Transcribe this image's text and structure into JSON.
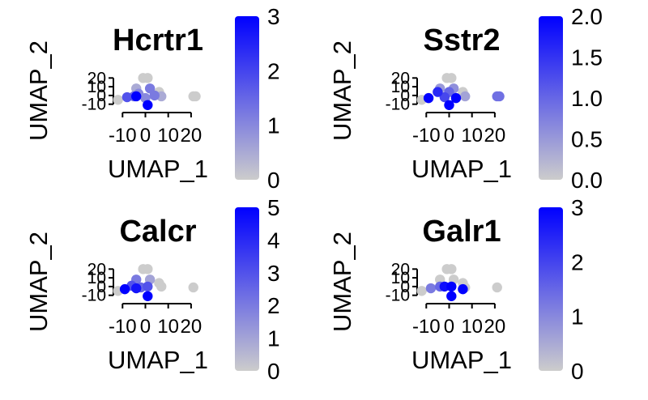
{
  "colors": {
    "low": "#cccccc",
    "high": "#0000ff",
    "axis": "#000000",
    "background": "#ffffff"
  },
  "chart_data": [
    {
      "type": "scatter",
      "title": "Hcrtr1",
      "xlabel": "UMAP_1",
      "ylabel": "UMAP_2",
      "xlim": [
        -14,
        25
      ],
      "ylim": [
        -14,
        24
      ],
      "xticks": [
        -10,
        0,
        10,
        20
      ],
      "xtick_labels": [
        "-10",
        "0",
        "10",
        "20"
      ],
      "yticks": [
        -10,
        0,
        10,
        20
      ],
      "ytick_labels": [
        "-10",
        "0",
        "10",
        "20"
      ],
      "legend": {
        "position": "right",
        "min": 0,
        "max": 3,
        "ticks": [
          0,
          1,
          2,
          3
        ],
        "tick_labels": [
          "0",
          "1",
          "2",
          "3"
        ]
      },
      "points": [
        {
          "x": -1,
          "y": 20,
          "v": 0
        },
        {
          "x": 1,
          "y": 20,
          "v": 0
        },
        {
          "x": -4,
          "y": 8,
          "v": 0.5
        },
        {
          "x": 2,
          "y": 8,
          "v": 1.2
        },
        {
          "x": 6,
          "y": 4,
          "v": 0
        },
        {
          "x": -3,
          "y": 2,
          "v": 1.0
        },
        {
          "x": 4,
          "y": 0,
          "v": 1.2
        },
        {
          "x": 7,
          "y": -1,
          "v": 0.5
        },
        {
          "x": -8,
          "y": -2,
          "v": 1.8
        },
        {
          "x": -5,
          "y": -1,
          "v": 1.4
        },
        {
          "x": 0,
          "y": -3,
          "v": 1.0
        },
        {
          "x": -12,
          "y": -5,
          "v": 0
        },
        {
          "x": 21,
          "y": -1,
          "v": 0
        },
        {
          "x": 22,
          "y": -1,
          "v": 0
        },
        {
          "x": -4,
          "y": -1,
          "v": 3.0
        },
        {
          "x": 1,
          "y": -11,
          "v": 3.0
        }
      ]
    },
    {
      "type": "scatter",
      "title": "Sstr2",
      "xlabel": "UMAP_1",
      "ylabel": "UMAP_2",
      "xlim": [
        -14,
        25
      ],
      "ylim": [
        -14,
        24
      ],
      "xticks": [
        -10,
        0,
        10,
        20
      ],
      "xtick_labels": [
        "-10",
        "0",
        "10",
        "20"
      ],
      "yticks": [
        -10,
        0,
        10,
        20
      ],
      "ytick_labels": [
        "-10",
        "0",
        "10",
        "20"
      ],
      "legend": {
        "position": "right",
        "min": 0,
        "max": 2,
        "ticks": [
          0,
          0.5,
          1,
          1.5,
          2
        ],
        "tick_labels": [
          "0.0",
          "0.5",
          "1.0",
          "1.5",
          "2.0"
        ]
      },
      "points": [
        {
          "x": -1,
          "y": 20,
          "v": 0
        },
        {
          "x": 1,
          "y": 20,
          "v": 0
        },
        {
          "x": 2,
          "y": 8,
          "v": 0.6
        },
        {
          "x": -4,
          "y": 8,
          "v": 0.5
        },
        {
          "x": 6,
          "y": 4,
          "v": 0
        },
        {
          "x": 7,
          "y": -1,
          "v": 0.4
        },
        {
          "x": -12,
          "y": -5,
          "v": 0
        },
        {
          "x": -5,
          "y": 4,
          "v": 1.6
        },
        {
          "x": 0,
          "y": 4,
          "v": 1.0
        },
        {
          "x": -9,
          "y": -3,
          "v": 2.0
        },
        {
          "x": -2,
          "y": -2,
          "v": 1.3
        },
        {
          "x": 3,
          "y": -3,
          "v": 2.0
        },
        {
          "x": 0,
          "y": -11,
          "v": 2.0
        },
        {
          "x": 21,
          "y": -1,
          "v": 0.9
        },
        {
          "x": 22,
          "y": -1,
          "v": 0.9
        }
      ]
    },
    {
      "type": "scatter",
      "title": "Calcr",
      "xlabel": "UMAP_1",
      "ylabel": "UMAP_2",
      "xlim": [
        -14,
        25
      ],
      "ylim": [
        -14,
        24
      ],
      "xticks": [
        -10,
        0,
        10,
        20
      ],
      "xtick_labels": [
        "-10",
        "0",
        "10",
        "20"
      ],
      "yticks": [
        -10,
        0,
        10,
        20
      ],
      "ytick_labels": [
        "-10",
        "0",
        "10",
        "20"
      ],
      "legend": {
        "position": "right",
        "min": 0,
        "max": 5,
        "ticks": [
          0,
          1,
          2,
          3,
          4,
          5
        ],
        "tick_labels": [
          "0",
          "1",
          "2",
          "3",
          "4",
          "5"
        ]
      },
      "points": [
        {
          "x": -1,
          "y": 20,
          "v": 0
        },
        {
          "x": 1,
          "y": 20,
          "v": 0
        },
        {
          "x": -4,
          "y": 8,
          "v": 2.0
        },
        {
          "x": 2,
          "y": 8,
          "v": 1.0
        },
        {
          "x": 6,
          "y": 4,
          "v": 0
        },
        {
          "x": 7,
          "y": 0,
          "v": 0
        },
        {
          "x": -12,
          "y": -5,
          "v": 0
        },
        {
          "x": 21,
          "y": -1,
          "v": 0
        },
        {
          "x": -6,
          "y": 1,
          "v": 3.0
        },
        {
          "x": -2,
          "y": -1,
          "v": 2.5
        },
        {
          "x": 1,
          "y": 0,
          "v": 3.0
        },
        {
          "x": -9,
          "y": -3,
          "v": 5.0
        },
        {
          "x": -4,
          "y": -2,
          "v": 4.5
        },
        {
          "x": 1,
          "y": -11,
          "v": 5.0
        }
      ]
    },
    {
      "type": "scatter",
      "title": "Galr1",
      "xlabel": "UMAP_1",
      "ylabel": "UMAP_2",
      "xlim": [
        -14,
        25
      ],
      "ylim": [
        -14,
        24
      ],
      "xticks": [
        -10,
        0,
        10,
        20
      ],
      "xtick_labels": [
        "-10",
        "0",
        "10",
        "20"
      ],
      "yticks": [
        -10,
        0,
        10,
        20
      ],
      "ytick_labels": [
        "-10",
        "0",
        "10",
        "20"
      ],
      "legend": {
        "position": "right",
        "min": 0,
        "max": 3,
        "ticks": [
          0,
          1,
          2,
          3
        ],
        "tick_labels": [
          "0",
          "1",
          "2",
          "3"
        ]
      },
      "points": [
        {
          "x": -1,
          "y": 20,
          "v": 0
        },
        {
          "x": 1,
          "y": 20,
          "v": 0
        },
        {
          "x": -4,
          "y": 8,
          "v": 0
        },
        {
          "x": 2,
          "y": 8,
          "v": 0
        },
        {
          "x": 6,
          "y": 4,
          "v": 0
        },
        {
          "x": 7,
          "y": -1,
          "v": 0
        },
        {
          "x": -12,
          "y": -5,
          "v": 0
        },
        {
          "x": 21,
          "y": -1,
          "v": 0
        },
        {
          "x": -4,
          "y": 0,
          "v": 1.5
        },
        {
          "x": -2,
          "y": 0,
          "v": 2.8
        },
        {
          "x": 1,
          "y": 0,
          "v": 3.0
        },
        {
          "x": -8,
          "y": -2,
          "v": 1.2
        },
        {
          "x": 6,
          "y": -3,
          "v": 3.0
        },
        {
          "x": 1,
          "y": -11,
          "v": 3.0
        }
      ]
    }
  ]
}
